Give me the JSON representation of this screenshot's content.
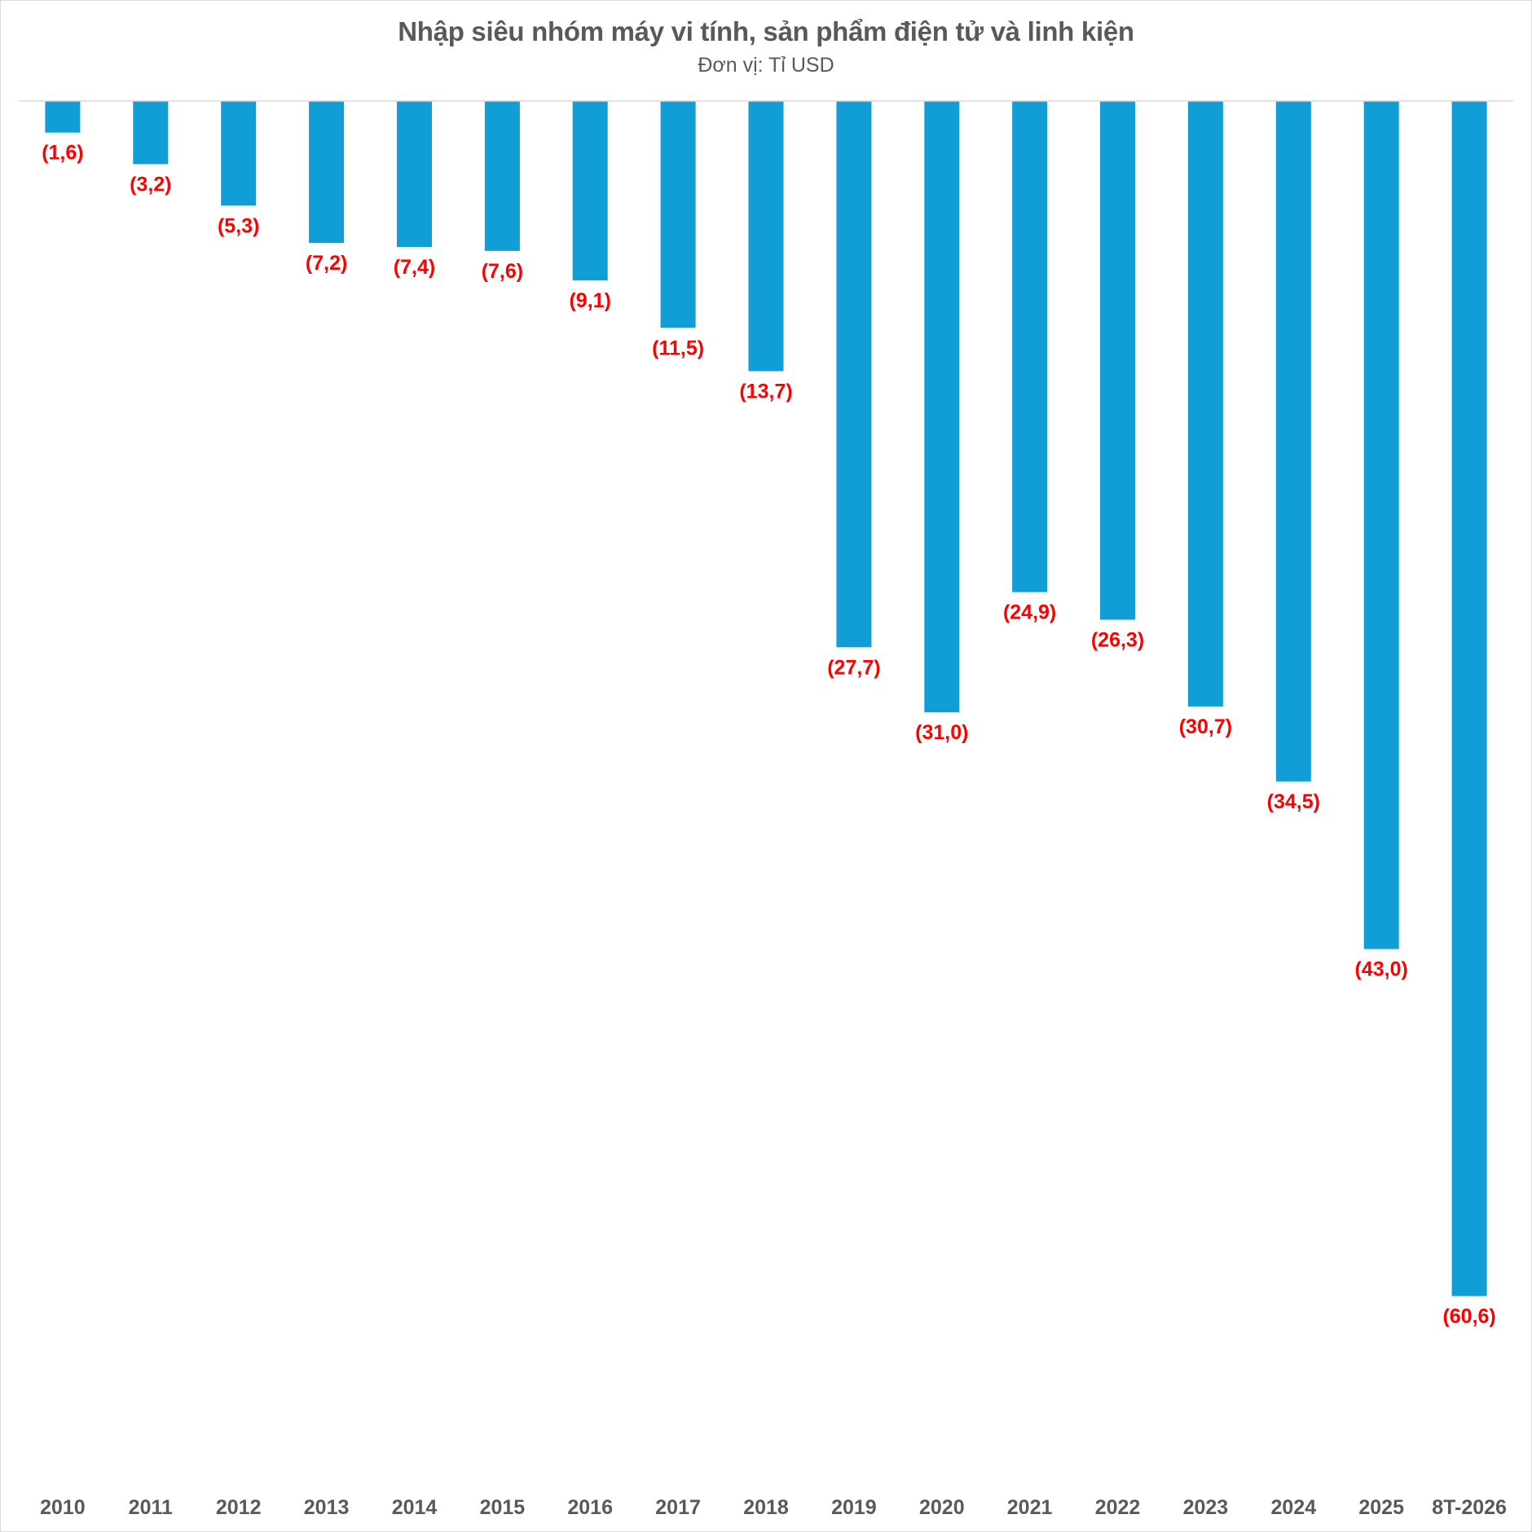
{
  "chart_data": {
    "type": "bar",
    "title": "Nhập siêu nhóm máy vi tính, sản phẩm điện tử và linh kiện",
    "subtitle": "Đơn vị: Tỉ USD",
    "categories": [
      "2010",
      "2011",
      "2012",
      "2013",
      "2014",
      "2015",
      "2016",
      "2017",
      "2018",
      "2019",
      "2020",
      "2021",
      "2022",
      "2023",
      "2024",
      "2025",
      "8T-2026"
    ],
    "values": [
      -1.6,
      -3.2,
      -5.3,
      -7.2,
      -7.4,
      -7.6,
      -9.1,
      -11.5,
      -13.7,
      -27.7,
      -31.0,
      -24.9,
      -26.3,
      -30.7,
      -34.5,
      -43.0,
      -60.6
    ],
    "data_labels": [
      "(1,6)",
      "(3,2)",
      "(5,3)",
      "(7,2)",
      "(7,4)",
      "(7,6)",
      "(9,1)",
      "(11,5)",
      "(13,7)",
      "(27,7)",
      "(31,0)",
      "(24,9)",
      "(26,3)",
      "(30,7)",
      "(34,5)",
      "(43,0)",
      "(60,6)"
    ],
    "xlabel": "",
    "ylabel": "",
    "ylim": [
      -70,
      0
    ],
    "grid": false,
    "legend": "none",
    "colors": {
      "bar": "#119ed6",
      "data_label": "#ff0000",
      "text": "#595959",
      "zero_line": "#d9d9d9"
    }
  }
}
